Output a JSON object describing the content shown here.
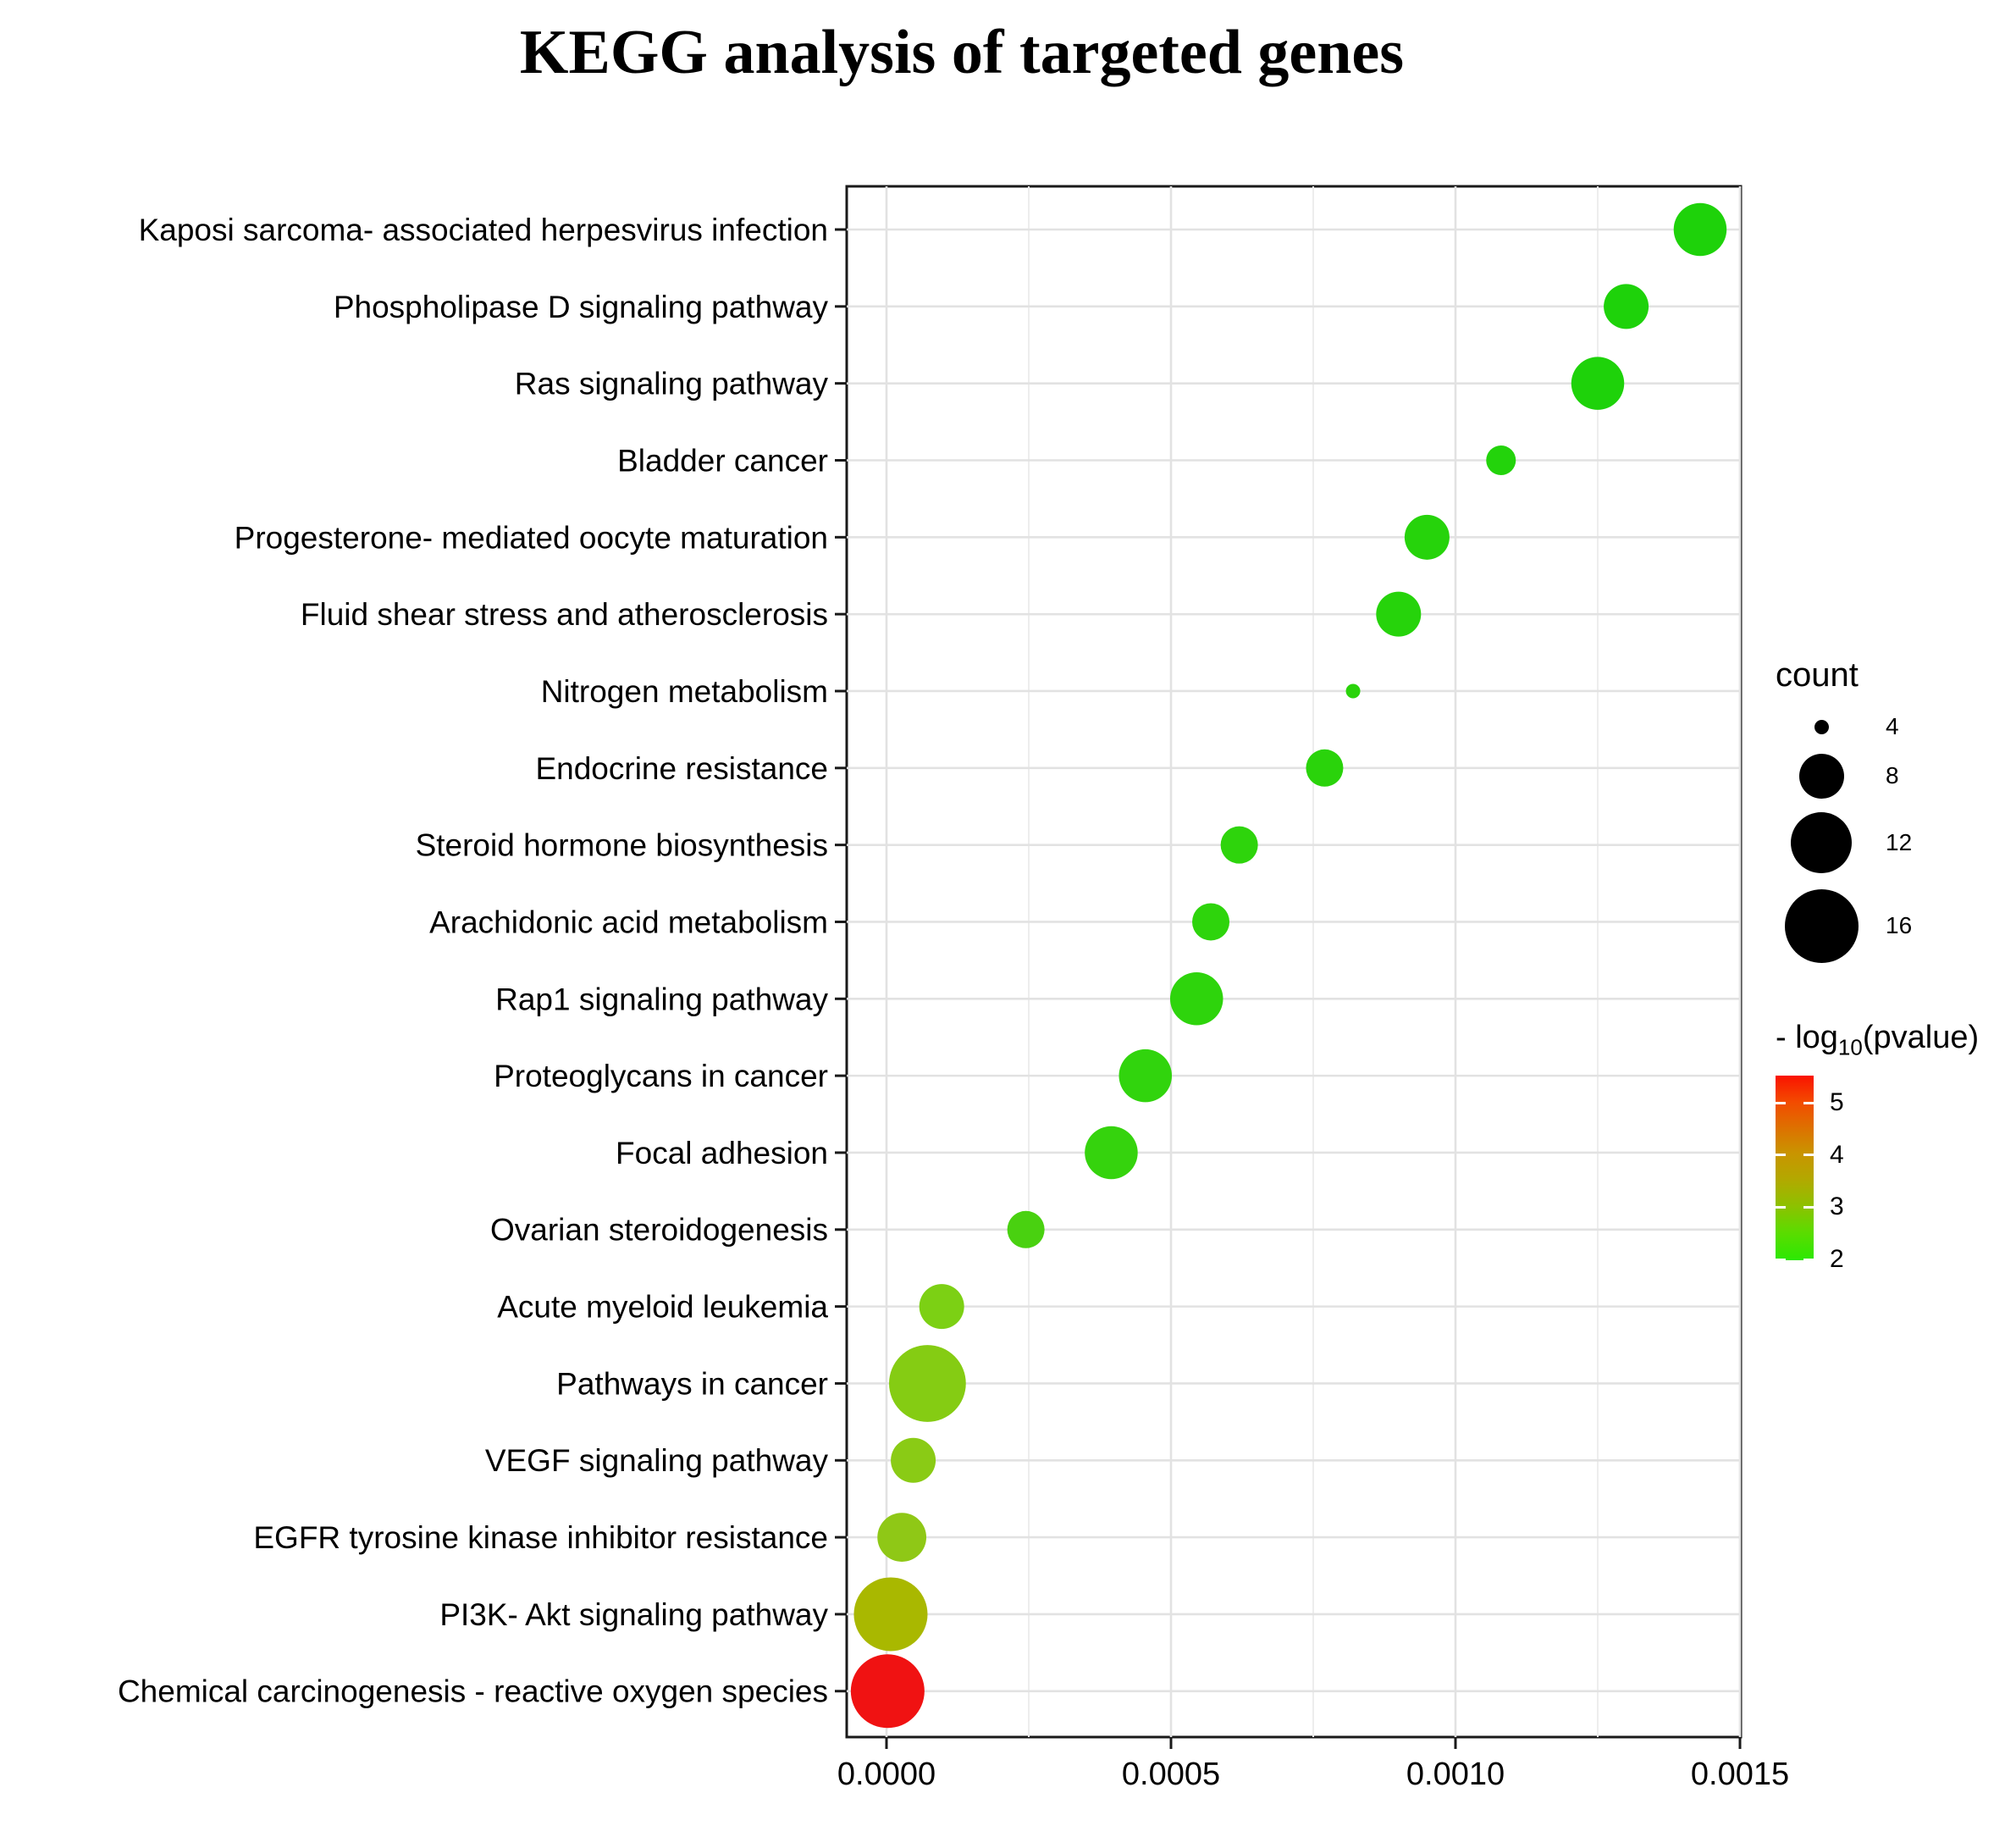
{
  "chart_data": {
    "type": "scatter",
    "title": "KEGG analysis of targeted genes",
    "xlabel": "",
    "ylabel": "",
    "x_domain": [
      0,
      0.0015
    ],
    "x_tick_labels": [
      "0.0000",
      "0.0005",
      "0.0010",
      "0.0015"
    ],
    "x_tick_values": [
      0,
      0.0005,
      0.001,
      0.0015
    ],
    "x_minor_values": [
      0.00025,
      0.00075,
      0.00125
    ],
    "grid": true,
    "legend_position": "right",
    "points": [
      {
        "pathway": "Kaposi sarcoma- associated herpesvirus infection",
        "pvalue": 0.00143,
        "count": 10,
        "color": "#1ED20A"
      },
      {
        "pathway": "Phospholipase D signaling pathway",
        "pvalue": 0.0013,
        "count": 8,
        "color": "#1ED20A"
      },
      {
        "pathway": "Ras signaling pathway",
        "pvalue": 0.00125,
        "count": 10,
        "color": "#1ED20A"
      },
      {
        "pathway": "Bladder cancer",
        "pvalue": 0.00108,
        "count": 6,
        "color": "#23D30B"
      },
      {
        "pathway": "Progesterone- mediated oocyte maturation",
        "pvalue": 0.00095,
        "count": 8,
        "color": "#26D30B"
      },
      {
        "pathway": "Fluid shear stress and atherosclerosis",
        "pvalue": 0.0009,
        "count": 8,
        "color": "#26D30B"
      },
      {
        "pathway": "Nitrogen metabolism",
        "pvalue": 0.00082,
        "count": 4,
        "color": "#2AD30B"
      },
      {
        "pathway": "Endocrine resistance",
        "pvalue": 0.00077,
        "count": 7,
        "color": "#2AD30B"
      },
      {
        "pathway": "Steroid hormone biosynthesis",
        "pvalue": 0.00062,
        "count": 7,
        "color": "#2ED40C"
      },
      {
        "pathway": "Arachidonic acid metabolism",
        "pvalue": 0.00057,
        "count": 7,
        "color": "#2ED40C"
      },
      {
        "pathway": "Rap1 signaling pathway",
        "pvalue": 0.000545,
        "count": 10,
        "color": "#2ED40C"
      },
      {
        "pathway": "Proteoglycans in cancer",
        "pvalue": 0.000455,
        "count": 10,
        "color": "#31D40D"
      },
      {
        "pathway": "Focal adhesion",
        "pvalue": 0.000395,
        "count": 10,
        "color": "#35D30D"
      },
      {
        "pathway": "Ovarian steroidogenesis",
        "pvalue": 0.000245,
        "count": 7,
        "color": "#49D110"
      },
      {
        "pathway": "Acute myeloid leukemia",
        "pvalue": 9.7e-05,
        "count": 8,
        "color": "#7CD014"
      },
      {
        "pathway": "Pathways in cancer",
        "pvalue": 7.2e-05,
        "count": 17,
        "color": "#85CC13"
      },
      {
        "pathway": "VEGF signaling pathway",
        "pvalue": 4.7e-05,
        "count": 8,
        "color": "#8ACB15"
      },
      {
        "pathway": "EGFR tyrosine kinase inhibitor resistance",
        "pvalue": 2.7e-05,
        "count": 9,
        "color": "#8FC816"
      },
      {
        "pathway": "PI3K- Akt signaling pathway",
        "pvalue": 7.4e-06,
        "count": 16,
        "color": "#A9B800"
      },
      {
        "pathway": "Chemical carcinogenesis -  reactive oxygen species",
        "pvalue": 2e-06,
        "count": 16,
        "color": "#F01212"
      }
    ],
    "legend_count": {
      "title": "count",
      "breaks": [
        4,
        8,
        12,
        16
      ]
    },
    "legend_color": {
      "title_prefix": "- log",
      "title_sub": "10",
      "title_suffix": "(pvalue)",
      "ticks": [
        5,
        4,
        3,
        2
      ],
      "low_value": 2,
      "high_value": 5,
      "low_color": "#2CE803",
      "high_color": "#FA1200"
    }
  }
}
